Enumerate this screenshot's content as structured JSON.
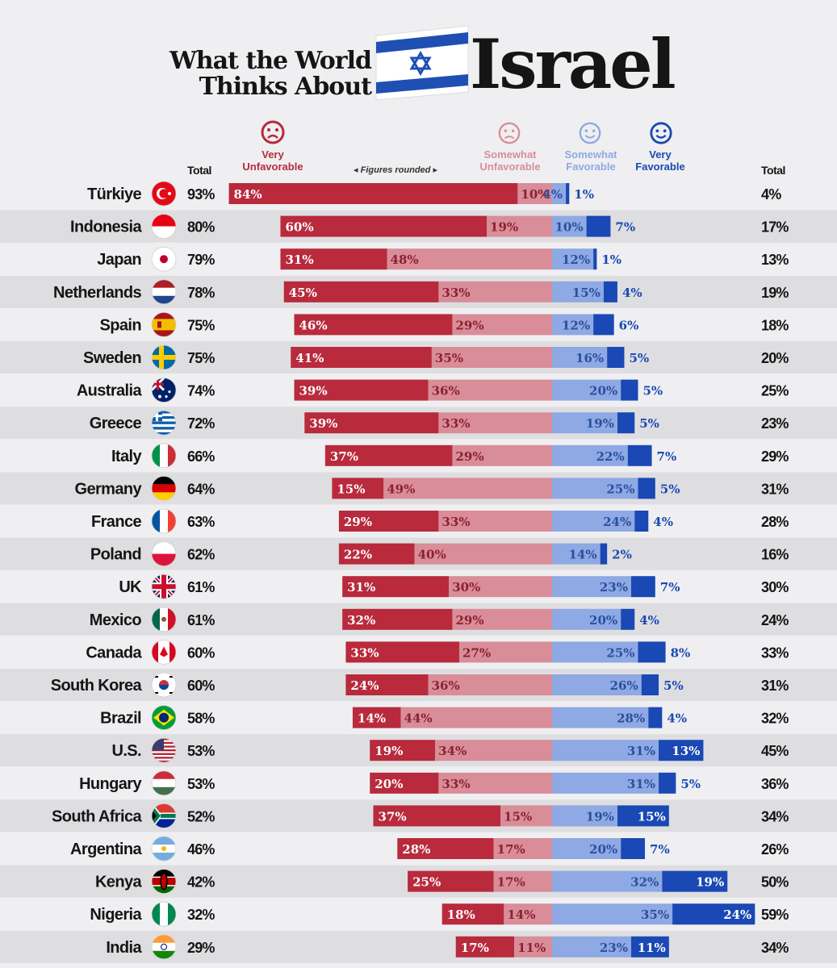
{
  "title": {
    "line1": "What the World",
    "line2": "Thinks About",
    "big": "Israel"
  },
  "headers": {
    "total_left": "Total",
    "very_unfavorable": [
      "Very",
      "Unfavorable"
    ],
    "figures_note": "◂ Figures rounded ▸",
    "somewhat_unfavorable": [
      "Somewhat",
      "Unfavorable"
    ],
    "somewhat_favorable": [
      "Somewhat",
      "Favorable"
    ],
    "very_favorable": [
      "Very",
      "Favorable"
    ],
    "total_right": "Total"
  },
  "colors": {
    "very_unfavorable": "#b82a3c",
    "somewhat_unfavorable": "#d98d99",
    "somewhat_favorable": "#8ea9e3",
    "very_favorable": "#1a48b4"
  },
  "chart_data": {
    "type": "bar",
    "layout": "diverging stacked horizontal bar",
    "categories": [
      "Türkiye",
      "Indonesia",
      "Japan",
      "Netherlands",
      "Spain",
      "Sweden",
      "Australia",
      "Greece",
      "Italy",
      "Germany",
      "France",
      "Poland",
      "UK",
      "Mexico",
      "Canada",
      "South Korea",
      "Brazil",
      "U.S.",
      "Hungary",
      "South Africa",
      "Argentina",
      "Kenya",
      "Nigeria",
      "India"
    ],
    "series": [
      {
        "name": "Very Unfavorable",
        "values": [
          84,
          60,
          31,
          45,
          46,
          41,
          39,
          39,
          37,
          15,
          29,
          22,
          31,
          32,
          33,
          24,
          14,
          19,
          20,
          37,
          28,
          25,
          18,
          17
        ]
      },
      {
        "name": "Somewhat Unfavorable",
        "values": [
          10,
          19,
          48,
          33,
          29,
          35,
          36,
          33,
          29,
          49,
          33,
          40,
          30,
          29,
          27,
          36,
          44,
          34,
          33,
          15,
          17,
          17,
          14,
          11
        ]
      },
      {
        "name": "Somewhat Favorable",
        "values": [
          4,
          10,
          12,
          15,
          12,
          16,
          20,
          19,
          22,
          25,
          24,
          14,
          23,
          20,
          25,
          26,
          28,
          31,
          31,
          19,
          20,
          32,
          35,
          23
        ]
      },
      {
        "name": "Very Favorable",
        "values": [
          1,
          7,
          1,
          4,
          6,
          5,
          5,
          5,
          7,
          5,
          4,
          2,
          7,
          4,
          8,
          5,
          4,
          13,
          5,
          15,
          7,
          19,
          24,
          11
        ]
      }
    ],
    "total_unfavorable": [
      "93%",
      "80%",
      "79%",
      "78%",
      "75%",
      "75%",
      "74%",
      "72%",
      "66%",
      "64%",
      "63%",
      "62%",
      "61%",
      "61%",
      "60%",
      "60%",
      "58%",
      "53%",
      "53%",
      "52%",
      "46%",
      "42%",
      "32%",
      "29%"
    ],
    "total_favorable": [
      "4%",
      "17%",
      "13%",
      "19%",
      "18%",
      "20%",
      "25%",
      "23%",
      "29%",
      "31%",
      "28%",
      "16%",
      "30%",
      "24%",
      "33%",
      "31%",
      "32%",
      "45%",
      "36%",
      "34%",
      "26%",
      "50%",
      "59%",
      "34%"
    ],
    "flags": [
      "turkey-flag",
      "indonesia-flag",
      "japan-flag",
      "netherlands-flag",
      "spain-flag",
      "sweden-flag",
      "australia-flag",
      "greece-flag",
      "italy-flag",
      "germany-flag",
      "france-flag",
      "poland-flag",
      "uk-flag",
      "mexico-flag",
      "canada-flag",
      "south-korea-flag",
      "brazil-flag",
      "us-flag",
      "hungary-flag",
      "south-africa-flag",
      "argentina-flag",
      "kenya-flag",
      "nigeria-flag",
      "india-flag"
    ]
  }
}
